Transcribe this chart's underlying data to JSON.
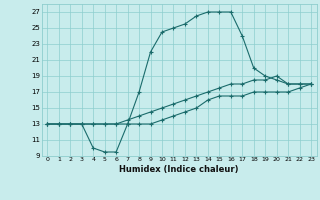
{
  "title": "",
  "xlabel": "Humidex (Indice chaleur)",
  "bg_color": "#c8ecec",
  "grid_color": "#8ecece",
  "line_color": "#1a6b6b",
  "xlim": [
    -0.5,
    23.5
  ],
  "ylim": [
    9,
    28
  ],
  "xticks": [
    0,
    1,
    2,
    3,
    4,
    5,
    6,
    7,
    8,
    9,
    10,
    11,
    12,
    13,
    14,
    15,
    16,
    17,
    18,
    19,
    20,
    21,
    22,
    23
  ],
  "yticks": [
    9,
    11,
    13,
    15,
    17,
    19,
    21,
    23,
    25,
    27
  ],
  "line1_x": [
    0,
    1,
    2,
    3,
    4,
    5,
    6,
    7,
    8,
    9,
    10,
    11,
    12,
    13,
    14,
    15,
    16,
    17,
    18,
    19,
    20,
    21,
    22,
    23
  ],
  "line1_y": [
    13,
    13,
    13,
    13,
    10,
    9.5,
    9.5,
    13,
    17,
    22,
    24.5,
    25,
    25.5,
    26.5,
    27,
    27,
    27,
    24,
    20,
    19,
    18.5,
    18,
    18,
    18
  ],
  "line2_x": [
    0,
    1,
    2,
    3,
    4,
    5,
    6,
    7,
    8,
    9,
    10,
    11,
    12,
    13,
    14,
    15,
    16,
    17,
    18,
    19,
    20,
    21,
    22,
    23
  ],
  "line2_y": [
    13,
    13,
    13,
    13,
    13,
    13,
    13,
    13.5,
    14,
    14.5,
    15,
    15.5,
    16,
    16.5,
    17,
    17.5,
    18,
    18,
    18.5,
    18.5,
    19,
    18,
    18,
    18
  ],
  "line3_x": [
    0,
    1,
    2,
    3,
    4,
    5,
    6,
    7,
    8,
    9,
    10,
    11,
    12,
    13,
    14,
    15,
    16,
    17,
    18,
    19,
    20,
    21,
    22,
    23
  ],
  "line3_y": [
    13,
    13,
    13,
    13,
    13,
    13,
    13,
    13,
    13,
    13,
    13.5,
    14,
    14.5,
    15,
    16,
    16.5,
    16.5,
    16.5,
    17,
    17,
    17,
    17,
    17.5,
    18
  ]
}
